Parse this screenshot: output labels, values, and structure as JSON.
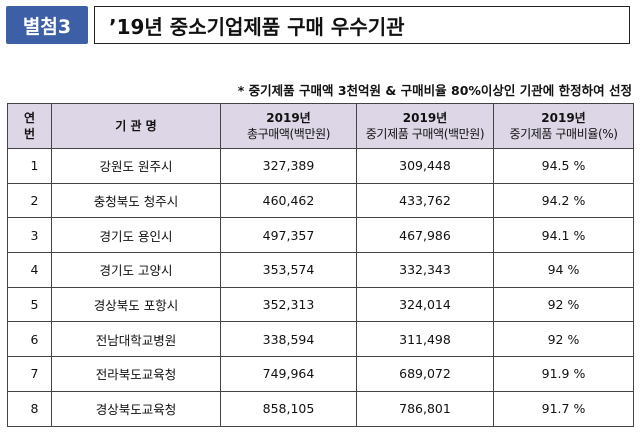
{
  "header": {
    "badge": "별첨3",
    "title": "’19년 중소기업제품 구매 우수기관"
  },
  "note": "* 중기제품 구매액 3천억원 & 구매비율 80%이상인 기관에 한정하여 선정",
  "table": {
    "columns": {
      "no_line1": "연",
      "no_line2": "번",
      "org": "기 관 명",
      "total_year": "2019년",
      "total_label": "총구매액(백만원)",
      "sme_year": "2019년",
      "sme_label": "중기제품 구매액(백만원)",
      "ratio_year": "2019년",
      "ratio_label": "중기제품 구매비율(%)"
    },
    "rows": [
      {
        "no": "1",
        "org": "강원도 원주시",
        "total": "327,389",
        "sme": "309,448",
        "ratio": "94.5 %"
      },
      {
        "no": "2",
        "org": "충청북도 청주시",
        "total": "460,462",
        "sme": "433,762",
        "ratio": "94.2 %"
      },
      {
        "no": "3",
        "org": "경기도 용인시",
        "total": "497,357",
        "sme": "467,986",
        "ratio": "94.1 %"
      },
      {
        "no": "4",
        "org": "경기도 고양시",
        "total": "353,574",
        "sme": "332,343",
        "ratio": "94 %"
      },
      {
        "no": "5",
        "org": "경상북도 포항시",
        "total": "352,313",
        "sme": "324,014",
        "ratio": "92 %"
      },
      {
        "no": "6",
        "org": "전남대학교병원",
        "total": "338,594",
        "sme": "311,498",
        "ratio": "92 %"
      },
      {
        "no": "7",
        "org": "전라북도교육청",
        "total": "749,964",
        "sme": "689,072",
        "ratio": "91.9 %"
      },
      {
        "no": "8",
        "org": "경상북도교육청",
        "total": "858,105",
        "sme": "786,801",
        "ratio": "91.7 %"
      }
    ]
  }
}
